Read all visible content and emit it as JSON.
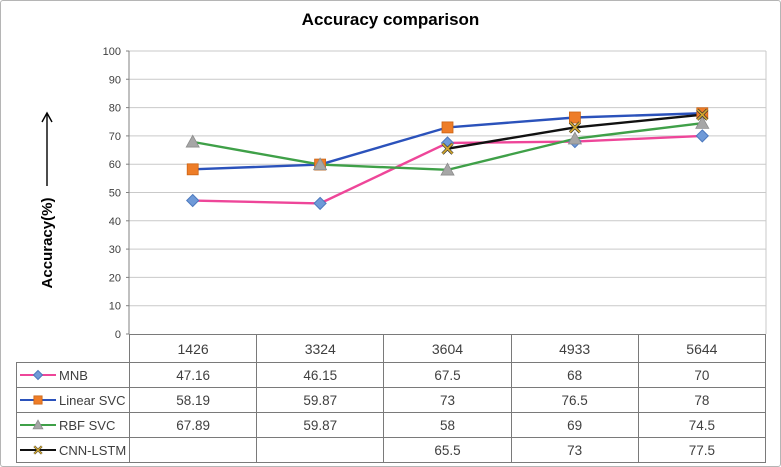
{
  "chart_data": {
    "type": "line",
    "title": "Accuracy comparison",
    "ylabel": "Accuracy(%)",
    "categories": [
      "1426",
      "3324",
      "3604",
      "4933",
      "5644"
    ],
    "series": [
      {
        "name": "MNB",
        "values": [
          47.16,
          46.15,
          67.5,
          68,
          70
        ],
        "line_color": "#ee4699",
        "marker": "diamond",
        "marker_color": "#6f9ad8",
        "marker_edge": "#4d79be"
      },
      {
        "name": "Linear SVC",
        "values": [
          58.19,
          59.87,
          73,
          76.5,
          78
        ],
        "line_color": "#2b52bb",
        "marker": "square",
        "marker_color": "#ee7d28",
        "marker_edge": "#cc6414"
      },
      {
        "name": "RBF SVC",
        "values": [
          67.89,
          59.87,
          58,
          69,
          74.5
        ],
        "line_color": "#3fa048",
        "marker": "triangle",
        "marker_color": "#a6a6a6",
        "marker_edge": "#8c8c8c"
      },
      {
        "name": "CNN-LSTM",
        "values": [
          null,
          null,
          65.5,
          73,
          77.5
        ],
        "line_color": "#111111",
        "marker": "x",
        "marker_color": "#d2a72e",
        "marker_edge": "#333333"
      }
    ],
    "ylim": [
      0,
      100
    ],
    "yticks": [
      0,
      10,
      20,
      30,
      40,
      50,
      60,
      70,
      80,
      90,
      100
    ],
    "grid": true,
    "legend_position": "table-left",
    "table_empty_cell": ""
  },
  "styles": {
    "grid_color": "#c9c9c9",
    "axis_color": "#808080",
    "text_color": "#3f3f3f",
    "table_border": "#7a7a7a",
    "frame_border": "#b5b5b5"
  }
}
